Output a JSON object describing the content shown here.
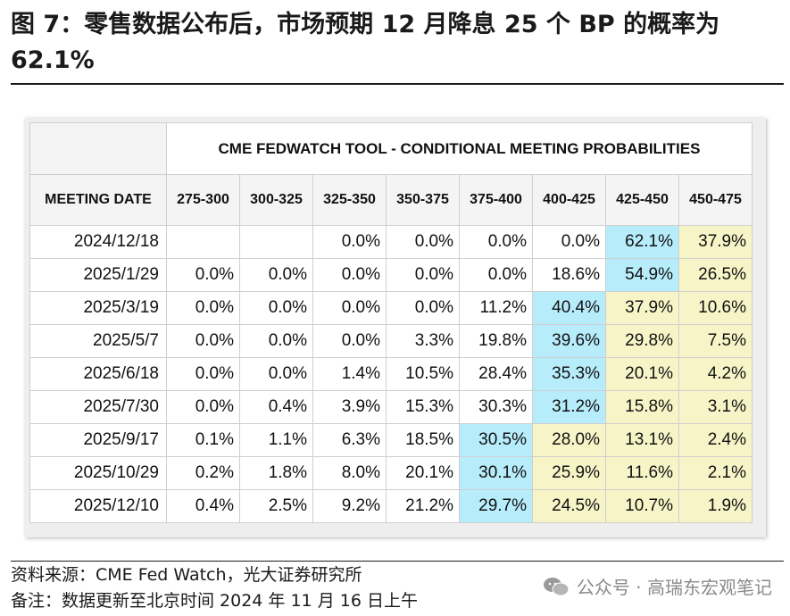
{
  "title": "图 7：零售数据公布后，市场预期 12 月降息 25 个 BP 的概率为 62.1%",
  "table": {
    "heading": "CME FEDWATCH TOOL - CONDITIONAL MEETING PROBABILITIES",
    "date_header": "MEETING DATE",
    "columns": [
      "275-300",
      "300-325",
      "325-350",
      "350-375",
      "375-400",
      "400-425",
      "425-450",
      "450-475"
    ],
    "rows": [
      {
        "date": "2024/12/18",
        "cells": [
          "",
          "",
          "0.0%",
          "0.0%",
          "0.0%",
          "0.0%",
          "62.1%",
          "37.9%"
        ]
      },
      {
        "date": "2025/1/29",
        "cells": [
          "0.0%",
          "0.0%",
          "0.0%",
          "0.0%",
          "0.0%",
          "18.6%",
          "54.9%",
          "26.5%"
        ]
      },
      {
        "date": "2025/3/19",
        "cells": [
          "0.0%",
          "0.0%",
          "0.0%",
          "0.0%",
          "11.2%",
          "40.4%",
          "37.9%",
          "10.6%"
        ]
      },
      {
        "date": "2025/5/7",
        "cells": [
          "0.0%",
          "0.0%",
          "0.0%",
          "3.3%",
          "19.8%",
          "39.6%",
          "29.8%",
          "7.5%"
        ]
      },
      {
        "date": "2025/6/18",
        "cells": [
          "0.0%",
          "0.0%",
          "1.4%",
          "10.5%",
          "28.4%",
          "35.3%",
          "20.1%",
          "4.2%"
        ]
      },
      {
        "date": "2025/7/30",
        "cells": [
          "0.0%",
          "0.4%",
          "3.9%",
          "15.3%",
          "30.3%",
          "31.2%",
          "15.8%",
          "3.1%"
        ]
      },
      {
        "date": "2025/9/17",
        "cells": [
          "0.1%",
          "1.1%",
          "6.3%",
          "18.5%",
          "30.5%",
          "28.0%",
          "13.1%",
          "2.4%"
        ]
      },
      {
        "date": "2025/10/29",
        "cells": [
          "0.2%",
          "1.8%",
          "8.0%",
          "20.1%",
          "30.1%",
          "25.9%",
          "11.6%",
          "2.1%"
        ]
      },
      {
        "date": "2025/12/10",
        "cells": [
          "0.4%",
          "2.5%",
          "9.2%",
          "21.2%",
          "29.7%",
          "24.5%",
          "10.7%",
          "1.9%"
        ]
      }
    ],
    "highlight_colors": {
      "max": "#b7ecfb",
      "above": "#f7f5c7"
    }
  },
  "footer": {
    "source": "资料来源：CME Fed Watch，光大证券研究所",
    "remark": "备注：数据更新至北京时间 2024 年 11 月 16 日上午",
    "watermark": "公众号 · 高瑞东宏观笔记",
    "watermark_icon": "wechat-icon"
  }
}
